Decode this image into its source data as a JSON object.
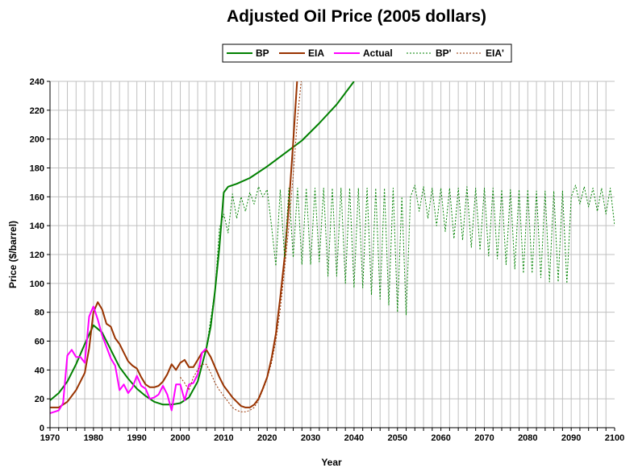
{
  "chart_data": {
    "type": "line",
    "title": "Adjusted Oil Price (2005 dollars)",
    "xlabel": "Year",
    "ylabel": "Price ($/barrel)",
    "xlim": [
      1970,
      2100
    ],
    "ylim": [
      0,
      240
    ],
    "x_ticks": [
      "1970",
      "1980",
      "1990",
      "2000",
      "2010",
      "2020",
      "2030",
      "2040",
      "2050",
      "2060",
      "2070",
      "2080",
      "2090",
      "2100"
    ],
    "y_ticks": [
      "0",
      "20",
      "40",
      "60",
      "80",
      "100",
      "120",
      "140",
      "160",
      "180",
      "200",
      "220",
      "240"
    ],
    "grid": true,
    "legend_position": "top",
    "series": [
      {
        "name": "BP",
        "style": "solid",
        "color": "#008000",
        "points": [
          [
            1970,
            19
          ],
          [
            1972,
            24
          ],
          [
            1974,
            32
          ],
          [
            1976,
            44
          ],
          [
            1978,
            58
          ],
          [
            1980,
            71
          ],
          [
            1982,
            66
          ],
          [
            1984,
            54
          ],
          [
            1986,
            42
          ],
          [
            1988,
            34
          ],
          [
            1990,
            27
          ],
          [
            1992,
            22
          ],
          [
            1994,
            18
          ],
          [
            1996,
            16
          ],
          [
            1998,
            16
          ],
          [
            2000,
            17
          ],
          [
            2002,
            21
          ],
          [
            2004,
            32
          ],
          [
            2006,
            55
          ],
          [
            2007,
            70
          ],
          [
            2008,
            95
          ],
          [
            2009,
            125
          ],
          [
            2010,
            163
          ],
          [
            2011,
            167
          ],
          [
            2013,
            169
          ],
          [
            2016,
            173
          ],
          [
            2020,
            181
          ],
          [
            2024,
            190
          ],
          [
            2028,
            199
          ],
          [
            2032,
            211
          ],
          [
            2036,
            224
          ],
          [
            2040,
            240
          ]
        ]
      },
      {
        "name": "EIA",
        "style": "solid",
        "color": "#993300",
        "points": [
          [
            1970,
            14
          ],
          [
            1972,
            14
          ],
          [
            1974,
            18
          ],
          [
            1976,
            26
          ],
          [
            1978,
            38
          ],
          [
            1979,
            55
          ],
          [
            1980,
            80
          ],
          [
            1981,
            87
          ],
          [
            1982,
            82
          ],
          [
            1983,
            72
          ],
          [
            1984,
            70
          ],
          [
            1985,
            62
          ],
          [
            1986,
            58
          ],
          [
            1987,
            52
          ],
          [
            1988,
            46
          ],
          [
            1989,
            43
          ],
          [
            1990,
            41
          ],
          [
            1991,
            35
          ],
          [
            1992,
            30
          ],
          [
            1993,
            28
          ],
          [
            1994,
            28
          ],
          [
            1995,
            29
          ],
          [
            1996,
            32
          ],
          [
            1997,
            37
          ],
          [
            1998,
            44
          ],
          [
            1999,
            40
          ],
          [
            2000,
            45
          ],
          [
            2001,
            47
          ],
          [
            2002,
            42
          ],
          [
            2003,
            42
          ],
          [
            2004,
            47
          ],
          [
            2005,
            52
          ],
          [
            2006,
            54
          ],
          [
            2007,
            49
          ],
          [
            2008,
            42
          ],
          [
            2009,
            35
          ],
          [
            2010,
            29
          ],
          [
            2011,
            25
          ],
          [
            2012,
            21
          ],
          [
            2013,
            18
          ],
          [
            2014,
            15
          ],
          [
            2015,
            14
          ],
          [
            2016,
            14
          ],
          [
            2017,
            16
          ],
          [
            2018,
            20
          ],
          [
            2019,
            27
          ],
          [
            2020,
            35
          ],
          [
            2021,
            48
          ],
          [
            2022,
            65
          ],
          [
            2023,
            90
          ],
          [
            2024,
            118
          ],
          [
            2025,
            155
          ],
          [
            2026,
            198
          ],
          [
            2027,
            245
          ]
        ]
      },
      {
        "name": "Actual",
        "style": "solid",
        "color": "#ff00ff",
        "points": [
          [
            1970,
            10
          ],
          [
            1971,
            11
          ],
          [
            1972,
            12
          ],
          [
            1973,
            17
          ],
          [
            1974,
            50
          ],
          [
            1975,
            54
          ],
          [
            1976,
            49
          ],
          [
            1977,
            49
          ],
          [
            1978,
            45
          ],
          [
            1979,
            77
          ],
          [
            1980,
            84
          ],
          [
            1981,
            75
          ],
          [
            1982,
            64
          ],
          [
            1983,
            56
          ],
          [
            1984,
            48
          ],
          [
            1985,
            43
          ],
          [
            1986,
            26
          ],
          [
            1987,
            30
          ],
          [
            1988,
            24
          ],
          [
            1989,
            28
          ],
          [
            1990,
            36
          ],
          [
            1991,
            29
          ],
          [
            1992,
            27
          ],
          [
            1993,
            20
          ],
          [
            1994,
            21
          ],
          [
            1995,
            23
          ],
          [
            1996,
            29
          ],
          [
            1997,
            23
          ],
          [
            1998,
            12
          ],
          [
            1999,
            30
          ],
          [
            2000,
            30
          ],
          [
            2001,
            19
          ],
          [
            2002,
            30
          ],
          [
            2003,
            31
          ],
          [
            2004,
            37
          ],
          [
            2005,
            52
          ],
          [
            2006,
            55
          ]
        ]
      },
      {
        "name": "BP'",
        "style": "dotted",
        "color": "#008000",
        "points": [
          [
            2006,
            55
          ],
          [
            2008,
            95
          ],
          [
            2009,
            138
          ],
          [
            2010,
            148
          ],
          [
            2011,
            135
          ],
          [
            2012,
            162
          ],
          [
            2013,
            145
          ],
          [
            2014,
            160
          ],
          [
            2015,
            150
          ],
          [
            2016,
            163
          ],
          [
            2017,
            155
          ],
          [
            2018,
            167
          ],
          [
            2019,
            160
          ],
          [
            2020,
            165
          ],
          [
            2021,
            140
          ],
          [
            2022,
            112
          ],
          [
            2023,
            165
          ],
          [
            2024,
            118
          ],
          [
            2025,
            166
          ],
          [
            2026,
            118
          ],
          [
            2027,
            166
          ],
          [
            2028,
            113
          ],
          [
            2029,
            166
          ],
          [
            2030,
            113
          ],
          [
            2031,
            166
          ],
          [
            2032,
            115
          ],
          [
            2033,
            166
          ],
          [
            2034,
            105
          ],
          [
            2035,
            166
          ],
          [
            2036,
            105
          ],
          [
            2037,
            166
          ],
          [
            2038,
            100
          ],
          [
            2039,
            166
          ],
          [
            2040,
            97
          ],
          [
            2041,
            166
          ],
          [
            2042,
            97
          ],
          [
            2043,
            166
          ],
          [
            2044,
            92
          ],
          [
            2045,
            166
          ],
          [
            2046,
            89
          ],
          [
            2047,
            166
          ],
          [
            2048,
            85
          ],
          [
            2049,
            166
          ],
          [
            2050,
            80
          ],
          [
            2051,
            160
          ],
          [
            2052,
            78
          ],
          [
            2053,
            160
          ],
          [
            2054,
            168
          ],
          [
            2055,
            150
          ],
          [
            2056,
            167
          ],
          [
            2057,
            145
          ],
          [
            2058,
            166
          ],
          [
            2059,
            140
          ],
          [
            2060,
            166
          ],
          [
            2061,
            136
          ],
          [
            2062,
            166
          ],
          [
            2063,
            131
          ],
          [
            2064,
            166
          ],
          [
            2065,
            130
          ],
          [
            2066,
            167
          ],
          [
            2067,
            125
          ],
          [
            2068,
            166
          ],
          [
            2069,
            123
          ],
          [
            2070,
            166
          ],
          [
            2071,
            119
          ],
          [
            2072,
            166
          ],
          [
            2073,
            117
          ],
          [
            2074,
            165
          ],
          [
            2075,
            113
          ],
          [
            2076,
            165
          ],
          [
            2077,
            110
          ],
          [
            2078,
            165
          ],
          [
            2079,
            107
          ],
          [
            2080,
            165
          ],
          [
            2081,
            107
          ],
          [
            2082,
            164
          ],
          [
            2083,
            104
          ],
          [
            2084,
            164
          ],
          [
            2085,
            101
          ],
          [
            2086,
            164
          ],
          [
            2087,
            101
          ],
          [
            2088,
            164
          ],
          [
            2089,
            100
          ],
          [
            2090,
            160
          ],
          [
            2091,
            168
          ],
          [
            2092,
            155
          ],
          [
            2093,
            167
          ],
          [
            2094,
            153
          ],
          [
            2095,
            166
          ],
          [
            2096,
            150
          ],
          [
            2097,
            166
          ],
          [
            2098,
            148
          ],
          [
            2099,
            166
          ],
          [
            2100,
            140
          ]
        ]
      },
      {
        "name": "EIA'",
        "style": "dotted",
        "color": "#993300",
        "points": [
          [
            2000,
            35
          ],
          [
            2001,
            31
          ],
          [
            2002,
            26
          ],
          [
            2003,
            35
          ],
          [
            2004,
            40
          ],
          [
            2005,
            44
          ],
          [
            2006,
            44
          ],
          [
            2007,
            38
          ],
          [
            2008,
            31
          ],
          [
            2009,
            26
          ],
          [
            2010,
            22
          ],
          [
            2011,
            18
          ],
          [
            2012,
            14
          ],
          [
            2013,
            12
          ],
          [
            2014,
            11
          ],
          [
            2015,
            11
          ],
          [
            2016,
            12
          ],
          [
            2017,
            14
          ],
          [
            2018,
            19
          ],
          [
            2019,
            26
          ],
          [
            2020,
            34
          ],
          [
            2021,
            45
          ],
          [
            2022,
            60
          ],
          [
            2023,
            82
          ],
          [
            2024,
            110
          ],
          [
            2025,
            140
          ],
          [
            2026,
            175
          ],
          [
            2027,
            215
          ],
          [
            2028,
            245
          ]
        ]
      }
    ]
  }
}
